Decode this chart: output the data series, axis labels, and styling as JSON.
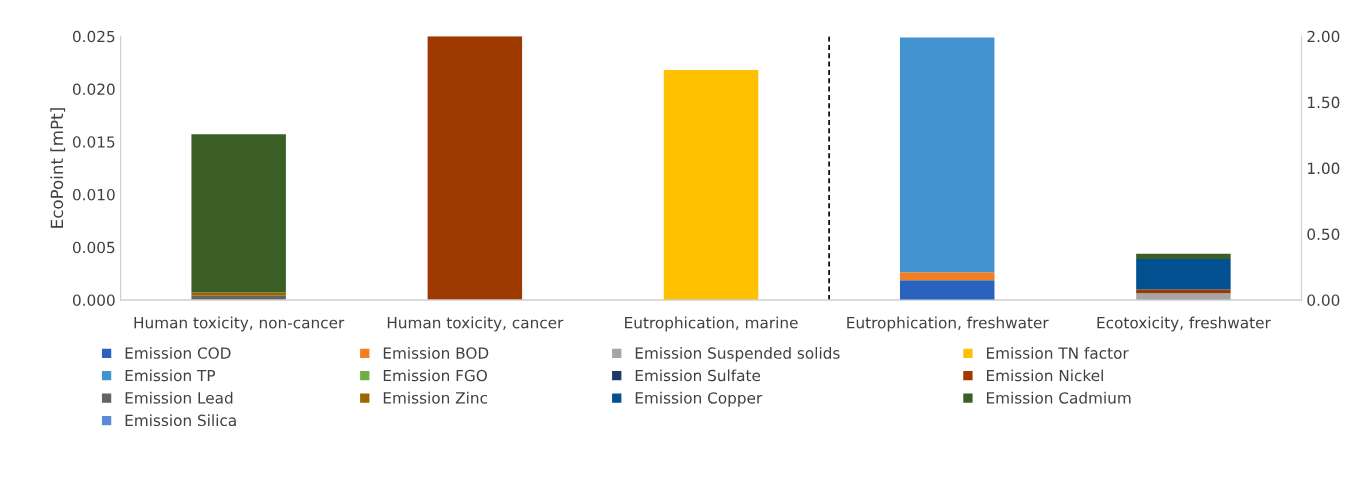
{
  "chart_data": {
    "type": "bar",
    "stacked": true,
    "ylabel": "EcoPoint [mPt]",
    "categories": [
      "Human toxicity, non-cancer",
      "Human toxicity, cancer",
      "Eutrophication, marine",
      "Eutrophication, freshwater",
      "Ecotoxicity, freshwater"
    ],
    "series": [
      {
        "name": "Emission COD",
        "color": "#2a62c0",
        "values": [
          null,
          null,
          null,
          null,
          null
        ]
      },
      {
        "name": "Emission BOD",
        "color": "#f07f24",
        "values": [
          null,
          null,
          null,
          null,
          null
        ]
      },
      {
        "name": "Emission Suspended solids",
        "color": "#a5a5a5",
        "values": [
          null,
          null,
          null,
          null,
          null
        ]
      },
      {
        "name": "Emission TN factor",
        "color": "#ffc000",
        "values": [
          null,
          null,
          0.0218,
          null,
          null
        ]
      },
      {
        "name": "Emission TP",
        "color": "#4393d0",
        "values": [
          null,
          null,
          null,
          null,
          null
        ]
      },
      {
        "name": "Emission FGO",
        "color": "#70ad47",
        "values": [
          null,
          null,
          null,
          null,
          null
        ]
      },
      {
        "name": "Emission Sulfate",
        "color": "#203864",
        "values": [
          null,
          null,
          null,
          null,
          null
        ]
      },
      {
        "name": "Emission Nickel",
        "color": "#9e3a00",
        "values": [
          null,
          0.025,
          null,
          null,
          null
        ]
      },
      {
        "name": "Emission Lead",
        "color": "#636363",
        "values": [
          0.0004,
          null,
          null,
          null,
          null
        ]
      },
      {
        "name": "Emission Zinc",
        "color": "#996600",
        "values": [
          0.0003,
          null,
          null,
          null,
          null
        ]
      },
      {
        "name": "Emission Copper",
        "color": "#02508f",
        "values": [
          null,
          null,
          null,
          null,
          null
        ]
      },
      {
        "name": "Emission Cadmium",
        "color": "#3b5e27",
        "values": [
          0.015,
          null,
          null,
          null,
          null
        ]
      },
      {
        "name": "Emission Silica",
        "color": "#5b8ad6",
        "values": [
          null,
          null,
          null,
          null,
          null
        ]
      },
      {
        "axis": "y2",
        "color": "#2a62c0",
        "values": [
          null,
          null,
          null,
          0.15,
          null
        ]
      },
      {
        "axis": "y2",
        "color": "#f07f24",
        "values": [
          null,
          null,
          null,
          0.06,
          null
        ]
      },
      {
        "axis": "y2",
        "color": "#a5a5a5",
        "values": [
          null,
          null,
          null,
          null,
          0.05
        ]
      },
      {
        "axis": "y2",
        "color": "#4393d0",
        "values": [
          null,
          null,
          null,
          1.78,
          null
        ]
      },
      {
        "axis": "y2",
        "color": "#9e3a00",
        "values": [
          null,
          null,
          null,
          null,
          0.03
        ]
      },
      {
        "axis": "y2",
        "color": "#02508f",
        "values": [
          null,
          null,
          null,
          null,
          0.23
        ]
      },
      {
        "axis": "y2",
        "color": "#3b5e27",
        "values": [
          null,
          null,
          null,
          null,
          0.04
        ]
      }
    ],
    "ylim": [
      0,
      0.025
    ],
    "yticks": [
      {
        "value": 0,
        "label": "0.000"
      },
      {
        "value": 0.005,
        "label": "0.005"
      },
      {
        "value": 0.01,
        "label": "0.010"
      },
      {
        "value": 0.015,
        "label": "0.015"
      },
      {
        "value": 0.02,
        "label": "0.020"
      },
      {
        "value": 0.025,
        "label": "0.025"
      }
    ],
    "y2lim": [
      0,
      2
    ],
    "y2ticks": [
      {
        "value": 0,
        "label": "0.00"
      },
      {
        "value": 0.5,
        "label": "0.50"
      },
      {
        "value": 1,
        "label": "1.00"
      },
      {
        "value": 1.5,
        "label": "1.50"
      },
      {
        "value": 2,
        "label": "2.00"
      }
    ],
    "legend": "bottom",
    "grid": false
  }
}
